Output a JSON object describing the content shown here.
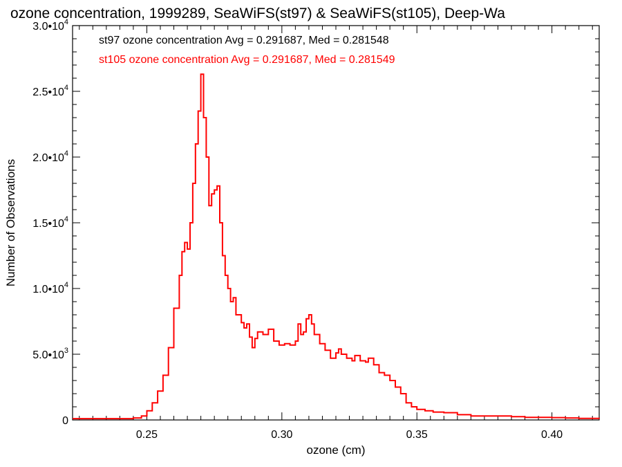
{
  "chart_data": {
    "type": "line",
    "title": "ozone concentration, 1999289, SeaWiFS(st97) & SeaWiFS(st105), Deep-Wa",
    "xlabel": "ozone (cm)",
    "ylabel": "Number of Observations",
    "xlim": [
      0.2225,
      0.4175
    ],
    "ylim": [
      0,
      30000
    ],
    "x_ticks": [
      {
        "value": 0.25,
        "label": "0.25"
      },
      {
        "value": 0.3,
        "label": "0.30"
      },
      {
        "value": 0.35,
        "label": "0.35"
      },
      {
        "value": 0.4,
        "label": "0.40"
      }
    ],
    "y_ticks": [
      {
        "value": 0,
        "mantissa": "0",
        "exponent": ""
      },
      {
        "value": 5000,
        "mantissa": "5.0•10",
        "exponent": "3"
      },
      {
        "value": 10000,
        "mantissa": "1.0•10",
        "exponent": "4"
      },
      {
        "value": 15000,
        "mantissa": "1.5•10",
        "exponent": "4"
      },
      {
        "value": 20000,
        "mantissa": "2.0•10",
        "exponent": "4"
      },
      {
        "value": 25000,
        "mantissa": "2.5•10",
        "exponent": "4"
      },
      {
        "value": 30000,
        "mantissa": "3.0•10",
        "exponent": "4"
      }
    ],
    "annotations": [
      {
        "text": "st97 ozone concentration Avg = 0.291687, Med = 0.281548",
        "color": "#000000"
      },
      {
        "text": "st105 ozone concentration Avg = 0.291687, Med = 0.281549",
        "color": "#ff0000"
      }
    ],
    "series": [
      {
        "color": "#ff0000",
        "points": [
          [
            0.2225,
            100
          ],
          [
            0.235,
            100
          ],
          [
            0.245,
            150
          ],
          [
            0.248,
            300
          ],
          [
            0.25,
            700
          ],
          [
            0.252,
            1300
          ],
          [
            0.254,
            2200
          ],
          [
            0.256,
            3400
          ],
          [
            0.258,
            5500
          ],
          [
            0.26,
            8500
          ],
          [
            0.262,
            11000
          ],
          [
            0.263,
            12800
          ],
          [
            0.264,
            13500
          ],
          [
            0.265,
            13000
          ],
          [
            0.266,
            15000
          ],
          [
            0.267,
            18000
          ],
          [
            0.268,
            21000
          ],
          [
            0.269,
            23500
          ],
          [
            0.27,
            26300
          ],
          [
            0.271,
            23000
          ],
          [
            0.272,
            20000
          ],
          [
            0.273,
            16300
          ],
          [
            0.274,
            17200
          ],
          [
            0.275,
            17500
          ],
          [
            0.276,
            17800
          ],
          [
            0.277,
            15000
          ],
          [
            0.278,
            12500
          ],
          [
            0.279,
            11000
          ],
          [
            0.28,
            10000
          ],
          [
            0.281,
            9000
          ],
          [
            0.282,
            9300
          ],
          [
            0.283,
            8000
          ],
          [
            0.285,
            7400
          ],
          [
            0.286,
            7000
          ],
          [
            0.287,
            7300
          ],
          [
            0.288,
            6300
          ],
          [
            0.289,
            5500
          ],
          [
            0.29,
            6200
          ],
          [
            0.291,
            6700
          ],
          [
            0.293,
            6500
          ],
          [
            0.295,
            6900
          ],
          [
            0.297,
            6000
          ],
          [
            0.299,
            5700
          ],
          [
            0.301,
            5800
          ],
          [
            0.303,
            5700
          ],
          [
            0.305,
            6000
          ],
          [
            0.306,
            7300
          ],
          [
            0.307,
            6500
          ],
          [
            0.308,
            6700
          ],
          [
            0.309,
            7700
          ],
          [
            0.31,
            8000
          ],
          [
            0.311,
            7300
          ],
          [
            0.312,
            6500
          ],
          [
            0.314,
            5800
          ],
          [
            0.316,
            5300
          ],
          [
            0.318,
            4700
          ],
          [
            0.32,
            5100
          ],
          [
            0.321,
            5400
          ],
          [
            0.322,
            5000
          ],
          [
            0.324,
            4700
          ],
          [
            0.326,
            4500
          ],
          [
            0.327,
            4900
          ],
          [
            0.329,
            4500
          ],
          [
            0.331,
            4400
          ],
          [
            0.332,
            4700
          ],
          [
            0.334,
            4200
          ],
          [
            0.336,
            3600
          ],
          [
            0.338,
            3400
          ],
          [
            0.34,
            3000
          ],
          [
            0.342,
            2500
          ],
          [
            0.344,
            2000
          ],
          [
            0.346,
            1300
          ],
          [
            0.348,
            1000
          ],
          [
            0.35,
            800
          ],
          [
            0.353,
            700
          ],
          [
            0.356,
            600
          ],
          [
            0.36,
            550
          ],
          [
            0.365,
            400
          ],
          [
            0.37,
            300
          ],
          [
            0.375,
            300
          ],
          [
            0.38,
            300
          ],
          [
            0.385,
            250
          ],
          [
            0.39,
            200
          ],
          [
            0.395,
            200
          ],
          [
            0.4,
            180
          ],
          [
            0.405,
            150
          ],
          [
            0.41,
            120
          ],
          [
            0.4175,
            100
          ]
        ]
      }
    ]
  }
}
